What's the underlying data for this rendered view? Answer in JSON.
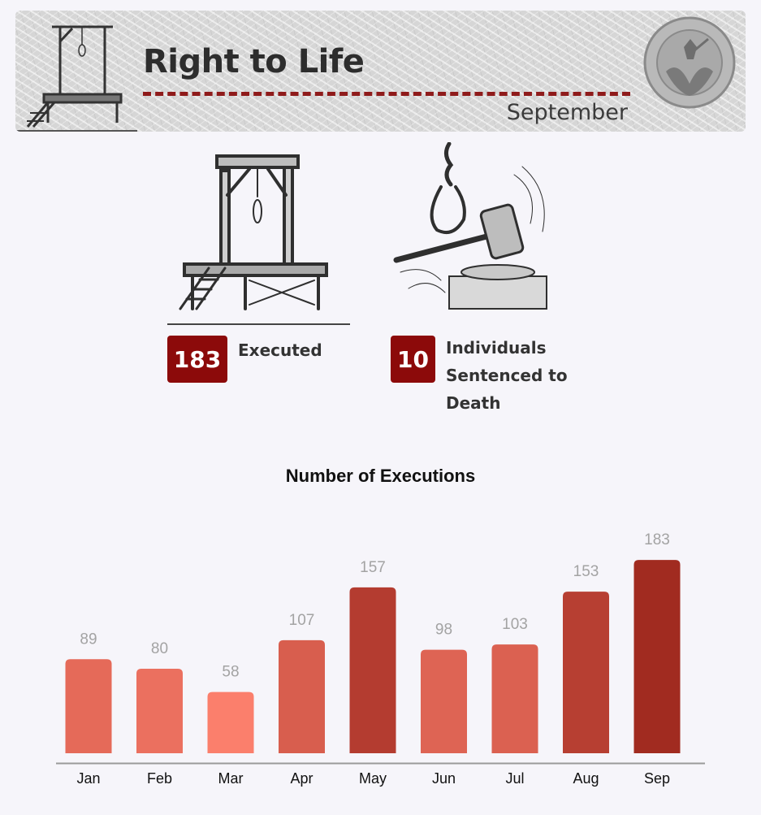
{
  "header": {
    "title": "Right to Life",
    "subtitle": "September"
  },
  "stats": [
    {
      "value": "183",
      "label": "Executed",
      "icon": "gallows-icon"
    },
    {
      "value": "10",
      "label": "Individuals Sentenced to Death",
      "icon": "noose-gavel-icon"
    }
  ],
  "colors": {
    "accent": "#8c0a0a",
    "rule": "#8f1b1b",
    "bar_light": "#fb7f6c",
    "bar_dark": "#a12b20"
  },
  "chart_data": {
    "type": "bar",
    "title": "Number of Executions",
    "categories": [
      "Jan",
      "Feb",
      "Mar",
      "Apr",
      "May",
      "Jun",
      "Jul",
      "Aug",
      "Sep"
    ],
    "values": [
      89,
      80,
      58,
      107,
      157,
      98,
      103,
      153,
      183
    ],
    "xlabel": "",
    "ylabel": "",
    "ylim": [
      0,
      200
    ],
    "grid": false,
    "data_labels": true
  }
}
